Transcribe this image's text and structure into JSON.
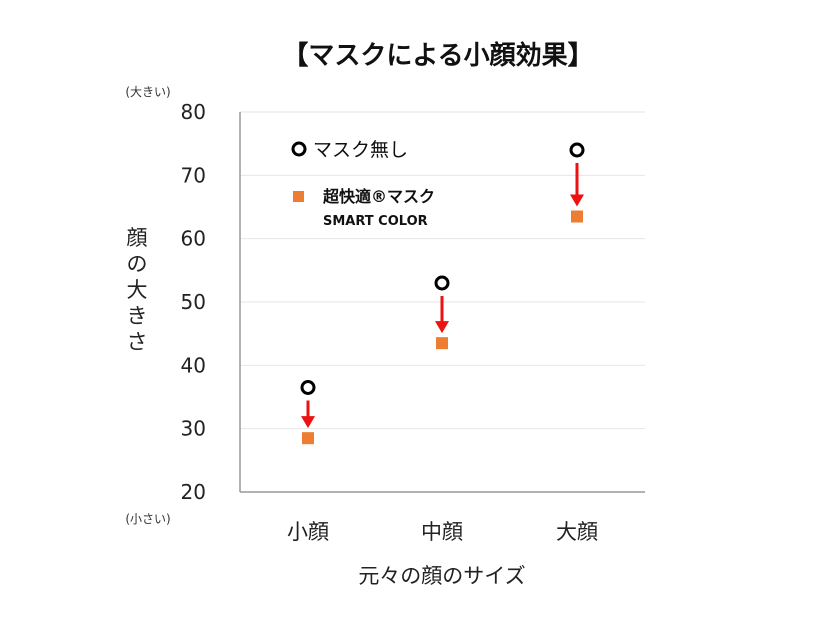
{
  "chart_data": {
    "type": "scatter",
    "title": "【マスクによる小顔効果】",
    "xlabel": "元々の顔のサイズ",
    "ylabel": "顔の大きさ",
    "y_top_note": "(大きい)",
    "y_bottom_note": "(小さい)",
    "categories": [
      "小顔",
      "中顔",
      "大顔"
    ],
    "ylim": [
      20,
      80
    ],
    "yticks": [
      20,
      30,
      40,
      50,
      60,
      70,
      80
    ],
    "grid": true,
    "legend_position": "top-left",
    "series": [
      {
        "name": "マスク無し",
        "marker": "circle-open",
        "color": "#000000",
        "values": [
          36.5,
          53,
          74
        ]
      },
      {
        "name": "超快適®マスク",
        "name_sub": "SMART COLOR",
        "marker": "square",
        "color": "#ed7d31",
        "values": [
          28.5,
          43.5,
          63.5
        ]
      }
    ],
    "annotations": {
      "arrows": "from マスク無し to 超快適マスク for each category",
      "arrow_color": "#ee1111"
    }
  }
}
